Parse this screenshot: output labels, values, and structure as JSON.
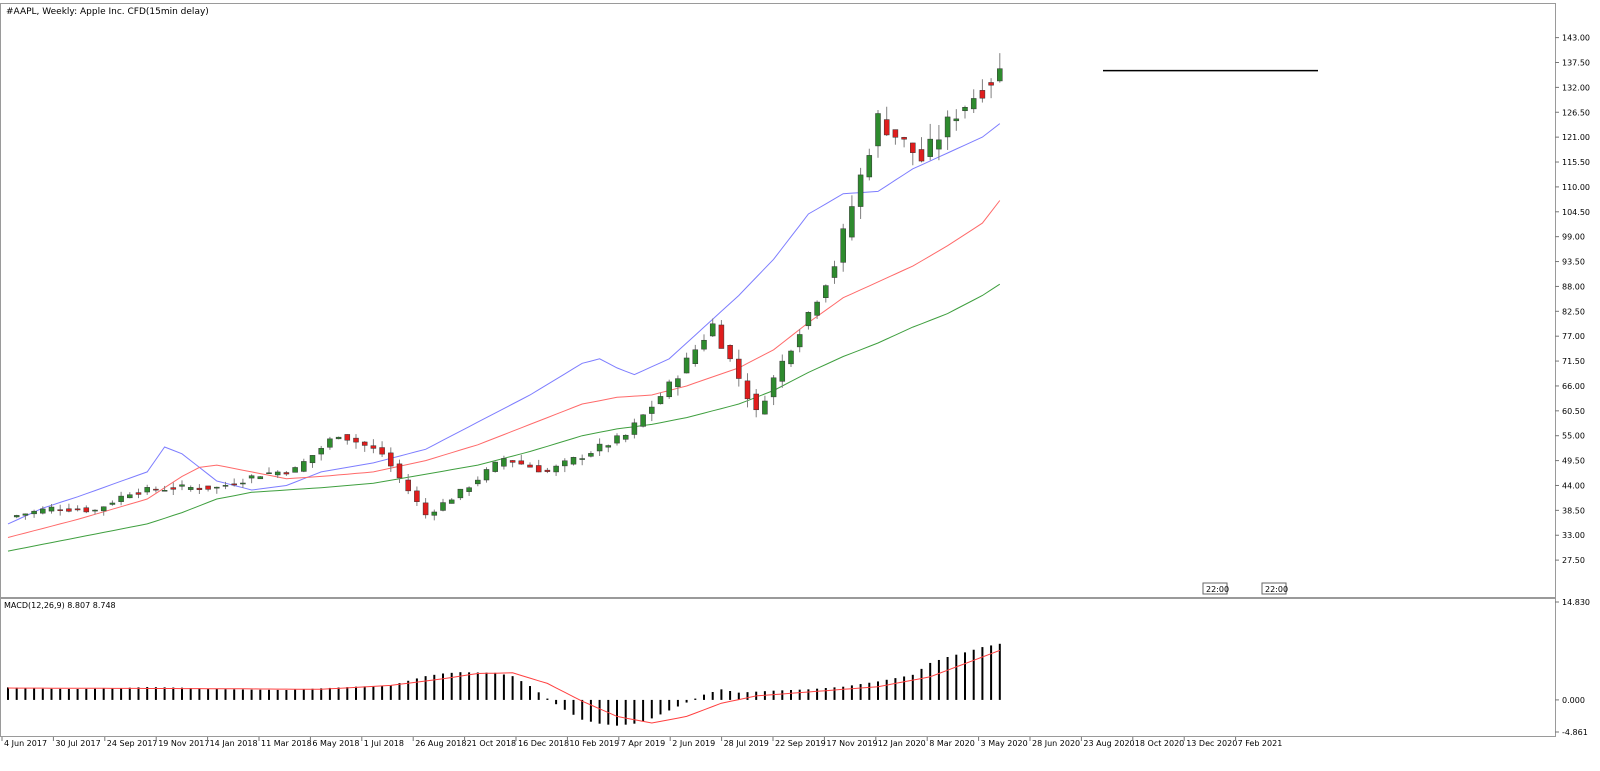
{
  "header": {
    "symbol_line": "#AAPL, Weekly:  Apple Inc. CFD(15min delay)",
    "macd_line": "MACD(12,26,9) 8.807 8.748"
  },
  "time_tags": [
    "22:00",
    "22:00"
  ],
  "colors": {
    "bull": "#2e8b2e",
    "bear": "#e01d1d",
    "wick": "#808080",
    "ma_fast": "#7d7dff",
    "ma_mid": "#ff6a6a",
    "ma_slow": "#3f9f3f",
    "resistance": "#000000",
    "macd_hist": "#000000",
    "macd_signal": "#ff4040"
  },
  "chart_data": [
    {
      "type": "candlestick",
      "title": "#AAPL, Weekly:  Apple Inc. CFD(15min delay)",
      "ylim": [
        22.0,
        148.0
      ],
      "y_ticks": [
        143.0,
        137.5,
        132.0,
        126.5,
        121.0,
        115.5,
        110.0,
        104.5,
        99.0,
        93.5,
        88.0,
        82.5,
        77.0,
        71.5,
        66.0,
        60.5,
        55.0,
        49.5,
        44.0,
        38.5,
        33.0,
        27.5
      ],
      "x_ticks": [
        "4 Jun 2017",
        "30 Jul 2017",
        "24 Sep 2017",
        "19 Nov 2017",
        "14 Jan 2018",
        "11 Mar 2018",
        "6 May 2018",
        "1 Jul 2018",
        "26 Aug 2018",
        "21 Oct 2018",
        "16 Dec 2018",
        "10 Feb 2019",
        "7 Apr 2019",
        "2 Jun 2019",
        "28 Jul 2019",
        "22 Sep 2019",
        "17 Nov 2019",
        "12 Jan 2020",
        "8 Mar 2020",
        "3 May 2020",
        "28 Jun 2020",
        "23 Aug 2020",
        "18 Oct 2020",
        "13 Dec 2020",
        "7 Feb 2021"
      ],
      "key_points": [
        {
          "date": "4 Jun 2017",
          "close": 37.0
        },
        {
          "date": "30 Jul 2017",
          "close": 39.0
        },
        {
          "date": "24 Sep 2017",
          "close": 38.5
        },
        {
          "date": "19 Nov 2017",
          "close": 42.5
        },
        {
          "date": "14 Jan 2018",
          "close": 43.5
        },
        {
          "date": "11 Mar 2018",
          "close": 43.5
        },
        {
          "date": "6 May 2018",
          "close": 46.5
        },
        {
          "date": "1 Jul 2018",
          "close": 47.5
        },
        {
          "date": "26 Aug 2018",
          "close": 55.5
        },
        {
          "date": "21 Oct 2018",
          "close": 51.0
        },
        {
          "date": "16 Dec 2018",
          "close": 37.5
        },
        {
          "date": "10 Feb 2019",
          "close": 42.5
        },
        {
          "date": "7 Apr 2019",
          "close": 50.0
        },
        {
          "date": "2 Jun 2019",
          "close": 47.0
        },
        {
          "date": "28 Jul 2019",
          "close": 51.5
        },
        {
          "date": "22 Sep 2019",
          "close": 55.0
        },
        {
          "date": "17 Nov 2019",
          "close": 66.0
        },
        {
          "date": "12 Jan 2020",
          "close": 79.5
        },
        {
          "date": "8 Mar 2020",
          "close": 60.0
        },
        {
          "date": "3 May 2020",
          "close": 75.0
        },
        {
          "date": "28 Jun 2020",
          "close": 93.0
        },
        {
          "date": "23 Aug 2020",
          "close": 125.0
        },
        {
          "date": "18 Oct 2020",
          "close": 116.0
        },
        {
          "date": "13 Dec 2020",
          "close": 126.5
        },
        {
          "date": "7 Feb 2021",
          "close": 135.5
        }
      ],
      "resistance_level": 135.7,
      "moving_averages": [
        {
          "color": "#7d7dff",
          "points": [
            [
              0,
              35.5
            ],
            [
              4,
              39.0
            ],
            [
              8,
              41.5
            ],
            [
              16,
              47.0
            ],
            [
              18,
              52.5
            ],
            [
              20,
              51.0
            ],
            [
              24,
              45.0
            ],
            [
              28,
              43.0
            ],
            [
              32,
              44.0
            ],
            [
              36,
              47.0
            ],
            [
              42,
              49.0
            ],
            [
              48,
              52.0
            ],
            [
              54,
              58.0
            ],
            [
              60,
              64.0
            ],
            [
              66,
              71.0
            ],
            [
              68,
              72.0
            ],
            [
              70,
              70.0
            ],
            [
              72,
              68.5
            ],
            [
              76,
              72.0
            ],
            [
              80,
              79.0
            ],
            [
              84,
              86.0
            ],
            [
              88,
              94.0
            ],
            [
              92,
              104.0
            ],
            [
              96,
              108.5
            ],
            [
              100,
              109.0
            ],
            [
              104,
              114.0
            ],
            [
              108,
              117.5
            ],
            [
              112,
              121.0
            ],
            [
              114,
              124.0
            ]
          ]
        },
        {
          "color": "#ff6a6a",
          "points": [
            [
              0,
              32.5
            ],
            [
              4,
              34.5
            ],
            [
              8,
              36.5
            ],
            [
              16,
              41.0
            ],
            [
              20,
              46.0
            ],
            [
              22,
              48.0
            ],
            [
              24,
              48.5
            ],
            [
              28,
              47.0
            ],
            [
              32,
              45.5
            ],
            [
              36,
              46.0
            ],
            [
              42,
              47.0
            ],
            [
              48,
              49.5
            ],
            [
              54,
              53.0
            ],
            [
              60,
              57.5
            ],
            [
              66,
              62.0
            ],
            [
              70,
              63.5
            ],
            [
              74,
              64.0
            ],
            [
              78,
              66.0
            ],
            [
              84,
              70.0
            ],
            [
              88,
              74.0
            ],
            [
              92,
              80.0
            ],
            [
              96,
              85.5
            ],
            [
              100,
              89.0
            ],
            [
              104,
              92.5
            ],
            [
              108,
              97.0
            ],
            [
              112,
              102.0
            ],
            [
              114,
              107.0
            ]
          ]
        },
        {
          "color": "#3f9f3f",
          "points": [
            [
              0,
              29.5
            ],
            [
              4,
              31.0
            ],
            [
              8,
              32.5
            ],
            [
              16,
              35.5
            ],
            [
              20,
              38.0
            ],
            [
              24,
              41.0
            ],
            [
              28,
              42.5
            ],
            [
              32,
              43.0
            ],
            [
              36,
              43.5
            ],
            [
              42,
              44.5
            ],
            [
              48,
              46.5
            ],
            [
              54,
              48.5
            ],
            [
              60,
              51.5
            ],
            [
              66,
              55.0
            ],
            [
              70,
              56.5
            ],
            [
              74,
              57.5
            ],
            [
              78,
              59.0
            ],
            [
              84,
              62.0
            ],
            [
              88,
              65.0
            ],
            [
              92,
              69.0
            ],
            [
              96,
              72.5
            ],
            [
              100,
              75.5
            ],
            [
              104,
              79.0
            ],
            [
              108,
              82.0
            ],
            [
              112,
              86.0
            ],
            [
              114,
              88.5
            ]
          ]
        }
      ]
    },
    {
      "type": "bar",
      "title": "MACD(12,26,9) 8.807 8.748",
      "ylim": [
        -4.861,
        14.83
      ],
      "y_ticks": [
        14.83,
        0.0,
        -4.861
      ],
      "values": [
        [
          0,
          1.9
        ],
        [
          4,
          1.7
        ],
        [
          8,
          1.65
        ],
        [
          12,
          1.75
        ],
        [
          16,
          1.95
        ],
        [
          20,
          1.85
        ],
        [
          24,
          1.65
        ],
        [
          28,
          1.55
        ],
        [
          32,
          1.5
        ],
        [
          36,
          1.75
        ],
        [
          40,
          2.0
        ],
        [
          44,
          2.2
        ],
        [
          48,
          3.6
        ],
        [
          50,
          4.0
        ],
        [
          52,
          4.2
        ],
        [
          56,
          4.1
        ],
        [
          58,
          3.6
        ],
        [
          60,
          2.1
        ],
        [
          62,
          0.2
        ],
        [
          64,
          -1.5
        ],
        [
          66,
          -3.0
        ],
        [
          68,
          -3.6
        ],
        [
          70,
          -3.9
        ],
        [
          72,
          -3.6
        ],
        [
          74,
          -2.8
        ],
        [
          76,
          -1.6
        ],
        [
          78,
          -0.4
        ],
        [
          80,
          0.8
        ],
        [
          82,
          1.6
        ],
        [
          84,
          1.1
        ],
        [
          88,
          1.4
        ],
        [
          92,
          1.6
        ],
        [
          96,
          2.0
        ],
        [
          100,
          2.8
        ],
        [
          104,
          3.8
        ],
        [
          106,
          5.6
        ],
        [
          108,
          6.5
        ],
        [
          110,
          7.2
        ],
        [
          112,
          8.0
        ],
        [
          114,
          8.5
        ]
      ],
      "signal": [
        [
          0,
          1.8
        ],
        [
          12,
          1.75
        ],
        [
          24,
          1.7
        ],
        [
          36,
          1.6
        ],
        [
          44,
          2.2
        ],
        [
          50,
          3.2
        ],
        [
          54,
          4.0
        ],
        [
          58,
          4.1
        ],
        [
          62,
          2.5
        ],
        [
          66,
          -0.2
        ],
        [
          70,
          -2.5
        ],
        [
          74,
          -3.5
        ],
        [
          78,
          -2.5
        ],
        [
          82,
          -0.5
        ],
        [
          86,
          0.6
        ],
        [
          92,
          1.2
        ],
        [
          100,
          2.0
        ],
        [
          106,
          3.5
        ],
        [
          110,
          5.5
        ],
        [
          114,
          7.5
        ]
      ]
    }
  ]
}
